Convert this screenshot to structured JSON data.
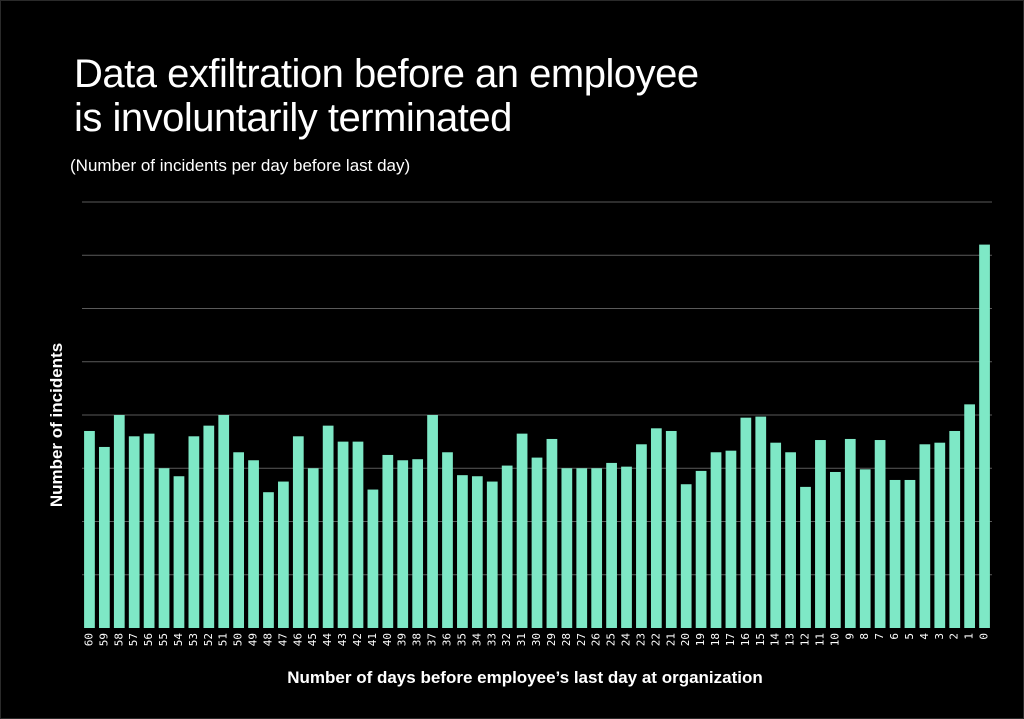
{
  "colors": {
    "bar": "#7ee8c6",
    "grid": "#5a5a5a",
    "background": "#000000",
    "text": "#ffffff"
  },
  "chart_data": {
    "type": "bar",
    "title_line1": "Data exfiltration before an employee",
    "title_line2": "is involuntarily terminated",
    "subtitle": "(Number of incidents per day before last day)",
    "xlabel": "Number of days before employee’s last day at organization",
    "ylabel": "Number of incidents",
    "grid": true,
    "ylim": [
      0,
      8
    ],
    "categories": [
      "60",
      "59",
      "58",
      "57",
      "56",
      "55",
      "54",
      "53",
      "52",
      "51",
      "50",
      "49",
      "48",
      "47",
      "46",
      "45",
      "44",
      "43",
      "42",
      "41",
      "40",
      "39",
      "38",
      "37",
      "36",
      "35",
      "34",
      "33",
      "32",
      "31",
      "30",
      "29",
      "28",
      "27",
      "26",
      "25",
      "24",
      "23",
      "22",
      "21",
      "20",
      "19",
      "18",
      "17",
      "16",
      "15",
      "14",
      "13",
      "12",
      "11",
      "10",
      "9",
      "8",
      "7",
      "6",
      "5",
      "4",
      "3",
      "2",
      "1",
      "0"
    ],
    "values": [
      3.7,
      3.4,
      4.0,
      3.6,
      3.65,
      3.0,
      2.85,
      3.6,
      3.8,
      4.0,
      3.3,
      3.15,
      2.55,
      2.75,
      3.6,
      3.0,
      3.8,
      3.5,
      3.5,
      2.6,
      3.25,
      3.15,
      3.17,
      4.0,
      3.3,
      2.87,
      2.85,
      2.75,
      3.05,
      3.65,
      3.2,
      3.55,
      3.0,
      3.0,
      3.0,
      3.1,
      3.03,
      3.45,
      3.75,
      3.7,
      2.7,
      2.95,
      3.3,
      3.33,
      3.95,
      3.97,
      3.48,
      3.3,
      2.65,
      3.53,
      2.93,
      3.55,
      2.98,
      3.53,
      2.78,
      2.78,
      3.45,
      3.48,
      3.7,
      4.2,
      7.2
    ]
  }
}
